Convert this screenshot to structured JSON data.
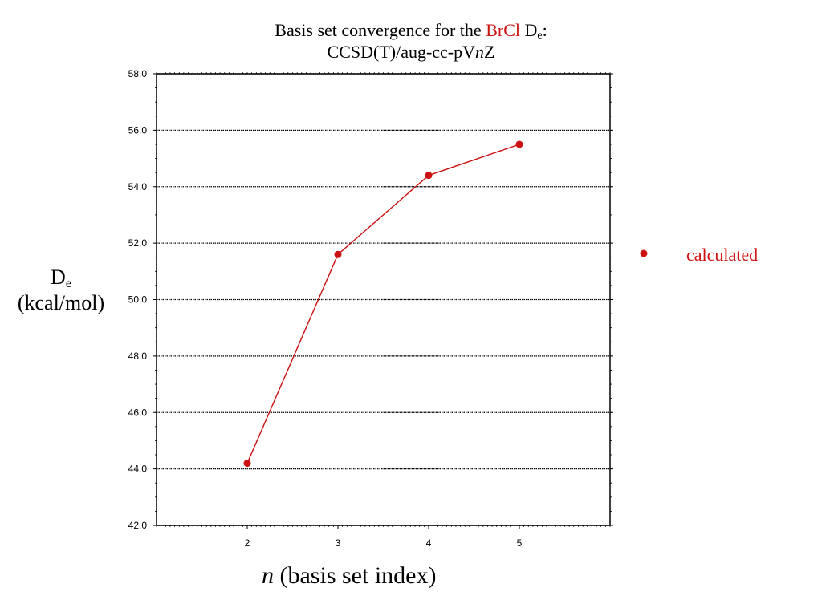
{
  "title": {
    "line1_prefix": "Basis set convergence for the ",
    "line1_highlight": "BrCl",
    "line1_de_main": " D",
    "line1_de_sub": "e",
    "line1_suffix": ":",
    "line2_prefix": "CCSD(T)/aug-cc-pV",
    "line2_italic": "n",
    "line2_suffix": "Z"
  },
  "ylabel": {
    "main": "D",
    "sub": "e",
    "unit": "(kcal/mol)"
  },
  "xlabel": {
    "italic": "n",
    "rest": " (basis set index)"
  },
  "legend": {
    "label": "calculated"
  },
  "colors": {
    "series": "#cc1111",
    "highlight": "#cc1111",
    "grid": "#000000"
  },
  "chart_data": {
    "type": "line",
    "x": [
      2,
      3,
      4,
      5
    ],
    "series": [
      {
        "name": "calculated",
        "values": [
          44.2,
          51.6,
          54.4,
          55.5
        ]
      }
    ],
    "xticks": [
      "2",
      "3",
      "4",
      "5"
    ],
    "yticks": [
      "42.0",
      "44.0",
      "46.0",
      "48.0",
      "50.0",
      "52.0",
      "54.0",
      "56.0",
      "58.0"
    ],
    "xlim": [
      1,
      6
    ],
    "ylim": [
      42,
      58
    ],
    "grid": "horizontal-dotted",
    "legend_position": "right"
  }
}
